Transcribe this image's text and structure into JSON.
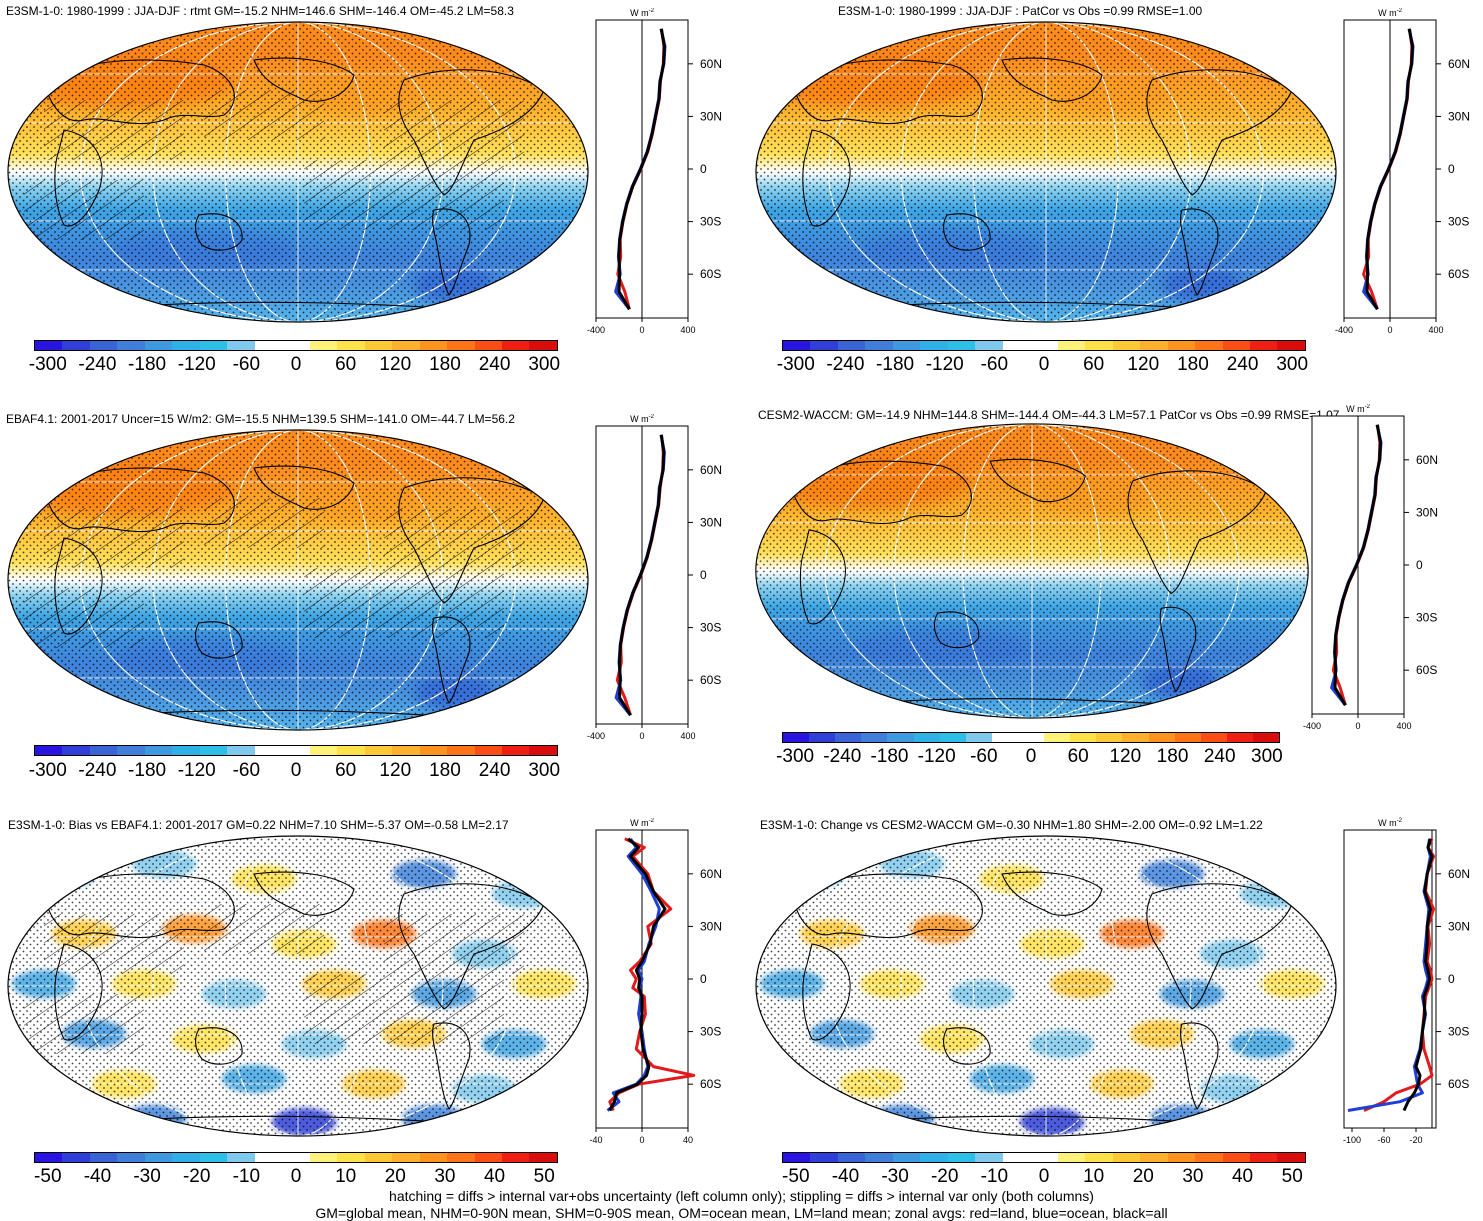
{
  "palette_mean": [
    "#2a14e0",
    "#2f3fd7",
    "#3a63d6",
    "#3f7fd9",
    "#3f99df",
    "#2fb0e6",
    "#2ebfe8",
    "#7fc9ec",
    "#ffffff",
    "#ffffff",
    "#fff27a",
    "#ffe14a",
    "#ffc936",
    "#ffb02c",
    "#ff9320",
    "#ff7418",
    "#fb4e16",
    "#f01f13",
    "#d80e0e"
  ],
  "palette_diff": [
    "#2a14e0",
    "#2f3fd7",
    "#3a63d6",
    "#3f7fd9",
    "#3f99df",
    "#2fb0e6",
    "#2ebfe8",
    "#7fc9ec",
    "#ffffff",
    "#ffffff",
    "#fff27a",
    "#ffe14a",
    "#ffc936",
    "#ffb02c",
    "#ff9320",
    "#ff7418",
    "#fb4e16",
    "#f01f13",
    "#d80e0e"
  ],
  "legend_units": "W m",
  "legend_units_sup": "-2",
  "chart_data": [
    {
      "type": "heatmap",
      "name": "p1",
      "title": "E3SM-1-0: 1980-1999 : JJA-DJF : rtmt GM=-15.2 NHM=146.6 SHM=-146.4 OM=-45.2 LM=58.3",
      "field": "mean",
      "hatching": true,
      "colorbar": {
        "ticks": [
          "-300",
          "-240",
          "-180",
          "-120",
          "-60",
          "0",
          "60",
          "120",
          "180",
          "240",
          "300"
        ]
      },
      "zonal": {
        "xlim": [
          -400,
          400
        ],
        "xticks": [
          "-400",
          "0",
          "400"
        ],
        "yticks": [
          "60N",
          "30N",
          "0",
          "30S",
          "60S"
        ],
        "lat": [
          80,
          70,
          60,
          50,
          40,
          30,
          20,
          10,
          0,
          -10,
          -20,
          -30,
          -40,
          -50,
          -60,
          -70,
          -80
        ],
        "land": [
          170,
          190,
          185,
          160,
          150,
          120,
          90,
          50,
          -10,
          -80,
          -130,
          -165,
          -190,
          -185,
          -210,
          -150,
          -110
        ],
        "ocean": [
          165,
          200,
          190,
          155,
          145,
          115,
          85,
          45,
          -15,
          -85,
          -135,
          -170,
          -195,
          -205,
          -190,
          -230,
          -110
        ],
        "all": [
          168,
          195,
          188,
          158,
          148,
          118,
          88,
          48,
          -12,
          -82,
          -132,
          -168,
          -193,
          -200,
          -195,
          -200,
          -110
        ]
      }
    },
    {
      "type": "heatmap",
      "name": "p2",
      "title": "E3SM-1-0: 1980-1999 : JJA-DJF : PatCor vs Obs =0.99 RMSE=1.00",
      "field": "mean",
      "hatching": false,
      "colorbar": {
        "ticks": [
          "-300",
          "-240",
          "-180",
          "-120",
          "-60",
          "0",
          "60",
          "120",
          "180",
          "240",
          "300"
        ]
      },
      "zonal": {
        "xlim": [
          -400,
          400
        ],
        "xticks": [
          "-400",
          "0",
          "400"
        ],
        "yticks": [
          "60N",
          "30N",
          "0",
          "30S",
          "60S"
        ],
        "lat": [
          80,
          70,
          60,
          50,
          40,
          30,
          20,
          10,
          0,
          -10,
          -20,
          -30,
          -40,
          -50,
          -60,
          -70,
          -80
        ],
        "land": [
          170,
          190,
          185,
          160,
          150,
          120,
          90,
          50,
          -10,
          -80,
          -130,
          -165,
          -190,
          -185,
          -230,
          -160,
          -110
        ],
        "ocean": [
          165,
          200,
          190,
          155,
          145,
          115,
          85,
          45,
          -15,
          -85,
          -135,
          -170,
          -195,
          -205,
          -190,
          -230,
          -110
        ],
        "all": [
          168,
          195,
          188,
          158,
          148,
          118,
          88,
          48,
          -12,
          -82,
          -132,
          -168,
          -193,
          -200,
          -195,
          -200,
          -110
        ]
      }
    },
    {
      "type": "heatmap",
      "name": "p3",
      "title": "EBAF4.1: 2001-2017 Uncer=15 W/m2: GM=-15.5 NHM=139.5 SHM=-141.0 OM=-44.7 LM=56.2",
      "field": "mean",
      "hatching": true,
      "colorbar": {
        "ticks": [
          "-300",
          "-240",
          "-180",
          "-120",
          "-60",
          "0",
          "60",
          "120",
          "180",
          "240",
          "300"
        ]
      },
      "zonal": {
        "xlim": [
          -400,
          400
        ],
        "xticks": [
          "-400",
          "0",
          "400"
        ],
        "yticks": [
          "60N",
          "30N",
          "0",
          "30S",
          "60S"
        ],
        "lat": [
          80,
          70,
          60,
          50,
          40,
          30,
          20,
          10,
          0,
          -10,
          -20,
          -30,
          -40,
          -50,
          -60,
          -70,
          -80
        ],
        "land": [
          170,
          185,
          180,
          158,
          145,
          115,
          85,
          45,
          -10,
          -75,
          -125,
          -160,
          -185,
          -180,
          -215,
          -150,
          -100
        ],
        "ocean": [
          165,
          195,
          185,
          150,
          140,
          110,
          80,
          40,
          -15,
          -80,
          -130,
          -165,
          -190,
          -200,
          -185,
          -225,
          -100
        ],
        "all": [
          168,
          190,
          183,
          155,
          143,
          113,
          83,
          43,
          -12,
          -78,
          -128,
          -163,
          -188,
          -195,
          -190,
          -195,
          -100
        ]
      }
    },
    {
      "type": "heatmap",
      "name": "p4",
      "title": "CESM2-WACCM: GM=-14.9 NHM=144.8 SHM=-144.4 OM=-44.3 LM=57.1 PatCor vs Obs =0.99 RMSE=1.07",
      "field": "mean",
      "hatching": false,
      "colorbar": {
        "ticks": [
          "-300",
          "-240",
          "-180",
          "-120",
          "-60",
          "0",
          "60",
          "120",
          "180",
          "240",
          "300"
        ]
      },
      "zonal": {
        "xlim": [
          -400,
          400
        ],
        "xticks": [
          "-400",
          "0",
          "400"
        ],
        "yticks": [
          "60N",
          "30N",
          "0",
          "30S",
          "60S"
        ],
        "lat": [
          80,
          70,
          60,
          50,
          40,
          30,
          20,
          10,
          0,
          -10,
          -20,
          -30,
          -40,
          -50,
          -60,
          -70,
          -80
        ],
        "land": [
          170,
          190,
          185,
          160,
          150,
          120,
          90,
          50,
          -10,
          -80,
          -130,
          -165,
          -190,
          -185,
          -215,
          -155,
          -110
        ],
        "ocean": [
          165,
          200,
          190,
          155,
          145,
          115,
          85,
          45,
          -15,
          -85,
          -135,
          -170,
          -195,
          -205,
          -190,
          -230,
          -110
        ],
        "all": [
          168,
          195,
          188,
          158,
          148,
          118,
          88,
          48,
          -12,
          -82,
          -132,
          -168,
          -193,
          -200,
          -195,
          -200,
          -110
        ]
      }
    },
    {
      "type": "heatmap",
      "name": "p5",
      "title": "E3SM-1-0: Bias vs EBAF4.1: 2001-2017 GM=0.22 NHM=7.10 SHM=-5.37 OM=-0.58 LM=2.17",
      "field": "diff",
      "hatching": true,
      "colorbar": {
        "ticks": [
          "-50",
          "-40",
          "-30",
          "-20",
          "-10",
          "0",
          "10",
          "20",
          "30",
          "40",
          "50"
        ]
      },
      "zonal": {
        "xlim": [
          -40,
          40
        ],
        "xticks": [
          "-40",
          "0",
          "40"
        ],
        "yticks": [
          "60N",
          "30N",
          "0",
          "30S",
          "60S"
        ],
        "lat": [
          80,
          75,
          70,
          60,
          50,
          40,
          30,
          20,
          10,
          5,
          0,
          -5,
          -10,
          -20,
          -30,
          -40,
          -50,
          -55,
          -60,
          -65,
          -70,
          -75
        ],
        "land": [
          -15,
          2,
          -8,
          5,
          10,
          25,
          5,
          8,
          -2,
          -10,
          -5,
          -8,
          2,
          3,
          -2,
          -5,
          10,
          45,
          -3,
          -20,
          -28,
          -25
        ],
        "ocean": [
          -10,
          -5,
          -12,
          0,
          8,
          15,
          12,
          6,
          2,
          -3,
          0,
          -2,
          -1,
          -3,
          0,
          2,
          5,
          2,
          -5,
          -25,
          -20,
          -30
        ],
        "all": [
          -12,
          -3,
          -10,
          3,
          10,
          20,
          10,
          7,
          0,
          -5,
          -2,
          -3,
          0,
          0,
          -1,
          1,
          6,
          4,
          -4,
          -22,
          -24,
          -28
        ]
      }
    },
    {
      "type": "heatmap",
      "name": "p6",
      "title": "E3SM-1-0: Change vs CESM2-WACCM GM=-0.30 NHM=1.80 SHM=-2.00 OM=-0.92 LM=1.22",
      "field": "diff",
      "hatching": false,
      "colorbar": {
        "ticks": [
          "-50",
          "-40",
          "-30",
          "-20",
          "-10",
          "0",
          "10",
          "20",
          "30",
          "40",
          "50"
        ]
      },
      "zonal": {
        "xlim": [
          -110,
          5
        ],
        "xticks": [
          "-100",
          "-60",
          "-20"
        ],
        "yticks": [
          "60N",
          "30N",
          "0",
          "30S",
          "60S"
        ],
        "lat": [
          80,
          75,
          70,
          60,
          50,
          40,
          30,
          20,
          10,
          5,
          0,
          -5,
          -10,
          -20,
          -30,
          -40,
          -50,
          -55,
          -60,
          -65,
          -70,
          -75
        ],
        "land": [
          0,
          -5,
          2,
          -6,
          -8,
          2,
          -5,
          -3,
          -6,
          -2,
          0,
          -4,
          -8,
          -10,
          -12,
          -10,
          -3,
          0,
          -15,
          -45,
          -60,
          -85
        ],
        "ocean": [
          -3,
          -5,
          -2,
          -6,
          -10,
          -4,
          -6,
          -8,
          -10,
          -8,
          -5,
          -8,
          -12,
          -8,
          -12,
          -15,
          -22,
          -20,
          -18,
          -12,
          -40,
          -105
        ],
        "all": [
          -2,
          -5,
          0,
          -6,
          -9,
          -2,
          -6,
          -6,
          -8,
          -5,
          -3,
          -6,
          -10,
          -9,
          -12,
          -14,
          -20,
          -15,
          -17,
          -22,
          -30,
          -35
        ]
      }
    }
  ],
  "footnote": {
    "line1": "hatching = diffs > internal var+obs uncertainty (left column only); stippling = diffs > internal var only (both columns)",
    "line2": "GM=global mean, NHM=0-90N mean, SHM=0-90S mean, OM=ocean mean, LM=land mean; zonal avgs: red=land, blue=ocean, black=all"
  }
}
